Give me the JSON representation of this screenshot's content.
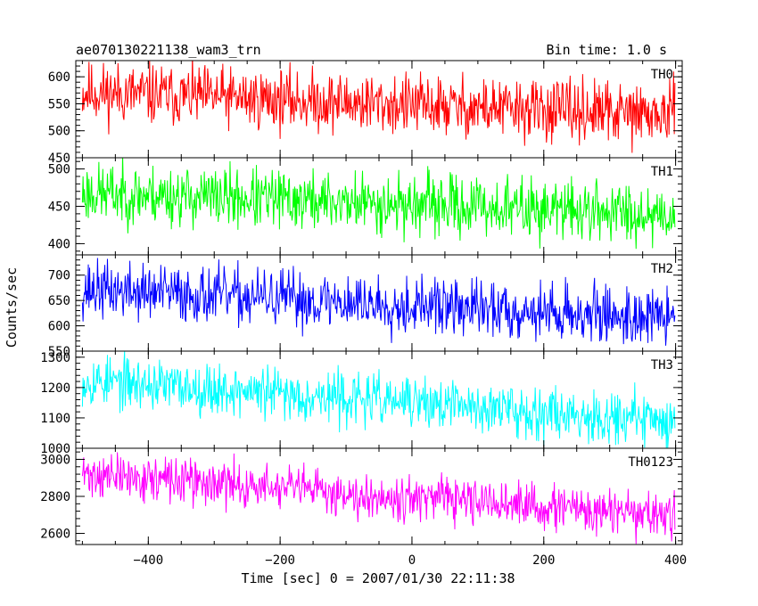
{
  "chart_data": {
    "type": "line",
    "title": "ae070130221138_wam3_trn",
    "bin_time_label": "Bin time: 1.0 s",
    "xlabel": "Time [sec] 0 = 2007/01/30 22:11:38",
    "ylabel": "Counts/sec",
    "xlim": [
      -510,
      410
    ],
    "x_ticks": [
      -400,
      -200,
      0,
      200,
      400
    ],
    "x_tick_labels": [
      "−400",
      "−200",
      "0",
      "200",
      "400"
    ],
    "x_range_data": [
      -500,
      399
    ],
    "grid": false,
    "panels": [
      {
        "name": "TH0",
        "color": "#ff0000",
        "ylim": [
          450,
          630
        ],
        "y_ticks": [
          450,
          500,
          550,
          600
        ],
        "y_tick_labels": [
          "450",
          "500",
          "550",
          "600"
        ],
        "start": 572,
        "end": 528,
        "noise": 28,
        "seed": 11
      },
      {
        "name": "TH1",
        "color": "#00ff00",
        "ylim": [
          385,
          515
        ],
        "y_ticks": [
          400,
          450,
          500
        ],
        "y_tick_labels": [
          "400",
          "450",
          "500"
        ],
        "start": 468,
        "end": 440,
        "noise": 20,
        "seed": 23
      },
      {
        "name": "TH2",
        "color": "#0000ff",
        "ylim": [
          550,
          740
        ],
        "y_ticks": [
          550,
          600,
          650,
          700
        ],
        "y_tick_labels": [
          "550",
          "600",
          "650",
          "700"
        ],
        "start": 672,
        "end": 615,
        "noise": 28,
        "seed": 37
      },
      {
        "name": "TH3",
        "color": "#00ffff",
        "ylim": [
          1000,
          1320
        ],
        "y_ticks": [
          1000,
          1100,
          1200,
          1300
        ],
        "y_tick_labels": [
          "1000",
          "1100",
          "1200",
          "1300"
        ],
        "start": 1225,
        "end": 1090,
        "noise": 42,
        "seed": 53
      },
      {
        "name": "TH0123",
        "color": "#ff00ff",
        "ylim": [
          2540,
          3060
        ],
        "y_ticks": [
          2600,
          2800,
          3000
        ],
        "y_tick_labels": [
          "2600",
          "2800",
          "3000"
        ],
        "start": 2920,
        "end": 2690,
        "noise": 60,
        "seed": 71
      }
    ]
  }
}
